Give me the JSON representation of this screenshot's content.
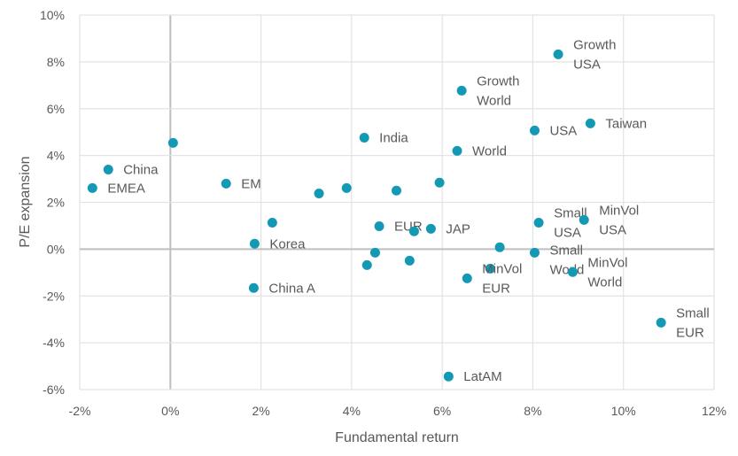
{
  "chart_data": {
    "type": "scatter",
    "title": "",
    "xlabel": "Fundamental return",
    "ylabel": "P/E expansion",
    "xlim": [
      -2,
      12
    ],
    "ylim": [
      -6,
      10
    ],
    "xticks": [
      -2,
      0,
      2,
      4,
      6,
      8,
      10,
      12
    ],
    "yticks": [
      -6,
      -4,
      -2,
      0,
      2,
      4,
      6,
      8,
      10
    ],
    "xtick_labels": [
      "-2%",
      "0%",
      "2%",
      "4%",
      "6%",
      "8%",
      "10%",
      "12%"
    ],
    "ytick_labels": [
      "-6%",
      "-4%",
      "-2%",
      "0%",
      "2%",
      "4%",
      "6%",
      "8%",
      "10%"
    ],
    "grid": true,
    "marker_color": "#1499B4",
    "points": [
      {
        "x": 8.56,
        "y": 8.32,
        "label": "Growth\nUSA"
      },
      {
        "x": 6.43,
        "y": 6.77,
        "label": "Growth\nWorld"
      },
      {
        "x": 8.04,
        "y": 5.07,
        "label": "USA"
      },
      {
        "x": 9.27,
        "y": 5.37,
        "label": "Taiwan"
      },
      {
        "x": 4.28,
        "y": 4.76,
        "label": "India"
      },
      {
        "x": 6.33,
        "y": 4.2,
        "label": "World"
      },
      {
        "x": -1.37,
        "y": 3.4,
        "label": "China"
      },
      {
        "x": -1.72,
        "y": 2.61,
        "label": "EMEA"
      },
      {
        "x": 0.06,
        "y": 4.54,
        "label": ""
      },
      {
        "x": 1.23,
        "y": 2.8,
        "label": "EM"
      },
      {
        "x": 3.28,
        "y": 2.38,
        "label": ""
      },
      {
        "x": 3.89,
        "y": 2.61,
        "label": ""
      },
      {
        "x": 4.99,
        "y": 2.5,
        "label": ""
      },
      {
        "x": 5.94,
        "y": 2.84,
        "label": ""
      },
      {
        "x": 2.25,
        "y": 1.13,
        "label": ""
      },
      {
        "x": 4.61,
        "y": 0.98,
        "label": "EUR"
      },
      {
        "x": 5.38,
        "y": 0.76,
        "label": ""
      },
      {
        "x": 5.75,
        "y": 0.87,
        "label": "JAP"
      },
      {
        "x": 1.86,
        "y": 0.23,
        "label": "Korea"
      },
      {
        "x": 7.27,
        "y": 0.08,
        "label": ""
      },
      {
        "x": 8.13,
        "y": 1.13,
        "label": "Small\nUSA"
      },
      {
        "x": 9.13,
        "y": 1.25,
        "label": "MinVol\nUSA"
      },
      {
        "x": 8.04,
        "y": -0.15,
        "label": "Small\nWorld"
      },
      {
        "x": 4.52,
        "y": -0.15,
        "label": ""
      },
      {
        "x": 4.34,
        "y": -0.68,
        "label": ""
      },
      {
        "x": 5.28,
        "y": -0.49,
        "label": ""
      },
      {
        "x": 7.06,
        "y": -0.83,
        "label": ""
      },
      {
        "x": 6.55,
        "y": -1.25,
        "label": "MinVol\nEUR"
      },
      {
        "x": 8.88,
        "y": -0.98,
        "label": "MinVol\nWorld"
      },
      {
        "x": 1.84,
        "y": -1.66,
        "label": "China A"
      },
      {
        "x": 10.83,
        "y": -3.14,
        "label": "Small\nEUR"
      },
      {
        "x": 6.14,
        "y": -5.44,
        "label": "LatAM"
      }
    ]
  }
}
